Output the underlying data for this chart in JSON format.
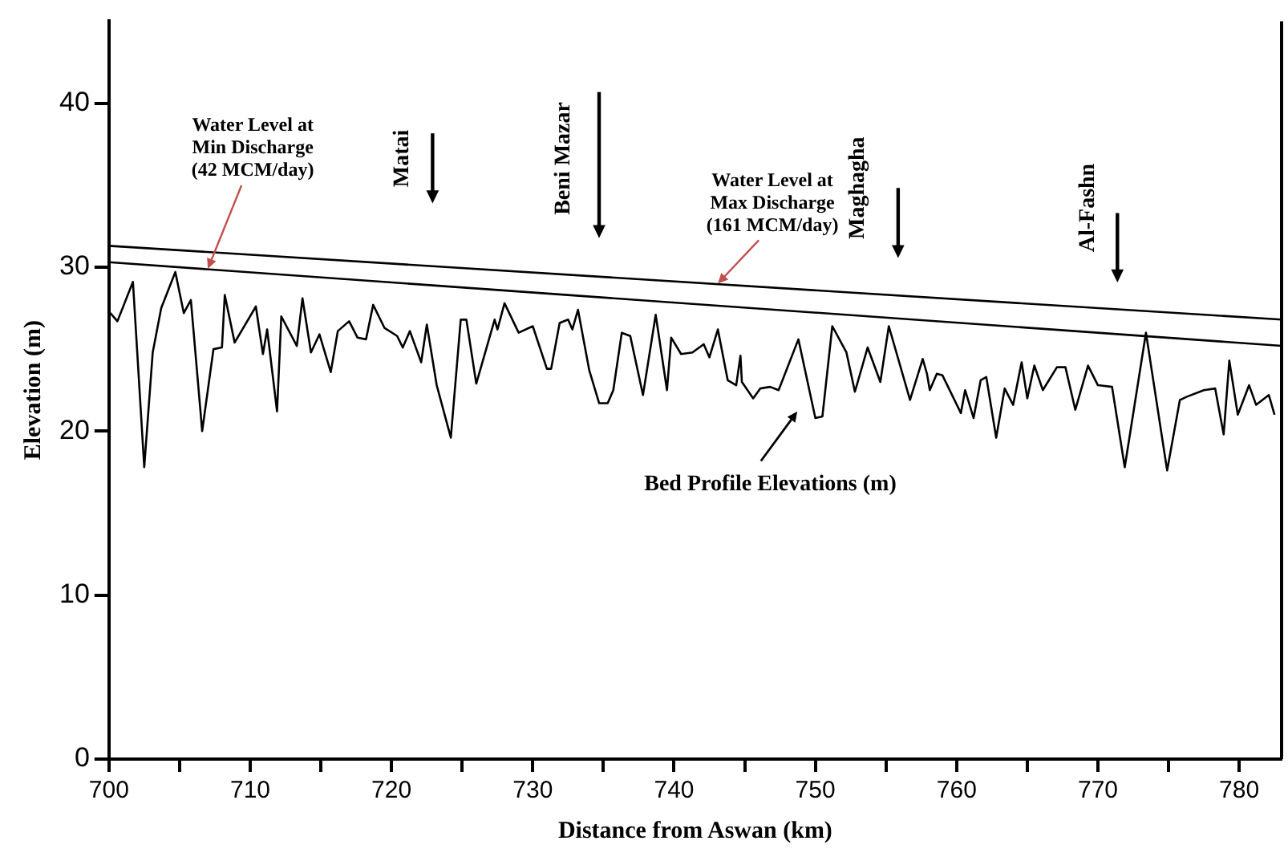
{
  "chart_data": {
    "type": "line",
    "xlabel": "Distance from Aswan (km)",
    "ylabel": "Elevation (m)",
    "xlim": [
      700,
      783
    ],
    "ylim": [
      0,
      45
    ],
    "xticks": [
      700,
      {
        "value": 705,
        "label": null
      },
      710,
      {
        "value": 715,
        "label": null
      },
      720,
      {
        "value": 725,
        "label": null
      },
      730,
      {
        "value": 735,
        "label": null
      },
      740,
      {
        "value": 745,
        "label": null
      },
      750,
      {
        "value": 755,
        "label": null
      },
      760,
      {
        "value": 765,
        "label": null
      },
      770,
      {
        "value": 775,
        "label": null
      },
      780
    ],
    "yticks": [
      0,
      10,
      20,
      30,
      40
    ],
    "grid": false,
    "legend": false,
    "marker": "none",
    "line_style": "solid",
    "series": [
      {
        "color": "#000000",
        "x": [
          700.1,
          700.6,
          701.7,
          702.5,
          703.1,
          703.7,
          704.7,
          705.3,
          705.8,
          706.6,
          707.4,
          708.0,
          708.2,
          708.9,
          710.4,
          710.9,
          711.2,
          711.9,
          712.2,
          713.3,
          713.7,
          714.3,
          714.9,
          715.7,
          716.2,
          717.0,
          717.6,
          718.2,
          718.7,
          719.5,
          720.4,
          720.8,
          721.3,
          722.1,
          722.5,
          723.2,
          724.2,
          724.9,
          725.3,
          726.0,
          727.3,
          727.5,
          728.0,
          729.0,
          730.0,
          731.0,
          731.3,
          731.9,
          732.5,
          732.8,
          733.2,
          734.0,
          734.7,
          735.3,
          735.7,
          736.3,
          736.9,
          737.8,
          738.7,
          739.5,
          739.8,
          740.5,
          741.3,
          742.1,
          742.5,
          743.1,
          743.8,
          744.4,
          744.7,
          744.8,
          745.6,
          746.1,
          746.8,
          747.4,
          748.8,
          750.0,
          750.5,
          751.2,
          752.2,
          752.8,
          753.7,
          754.6,
          755.2,
          756.7,
          757.6,
          757.9,
          758.1,
          758.6,
          759.0,
          760.3,
          760.6,
          761.2,
          761.7,
          762.1,
          762.8,
          763.4,
          764.0,
          764.6,
          765.0,
          765.5,
          766.1,
          767.1,
          767.7,
          768.4,
          769.3,
          770.0,
          771.0,
          771.9,
          773.4,
          774.9,
          775.8,
          776.3,
          777.5,
          778.3,
          778.9,
          779.3,
          779.9,
          780.7,
          781.2,
          782.1,
          782.5
        ],
        "values": [
          27.2,
          26.7,
          29.1,
          17.8,
          24.8,
          27.5,
          29.7,
          27.2,
          28.0,
          20.0,
          25.0,
          25.1,
          28.3,
          25.4,
          27.6,
          24.7,
          26.2,
          21.2,
          27.0,
          25.2,
          28.1,
          24.8,
          25.9,
          23.6,
          26.1,
          26.7,
          25.7,
          25.6,
          27.7,
          26.3,
          25.8,
          25.1,
          26.1,
          24.2,
          26.5,
          22.8,
          19.6,
          26.8,
          26.8,
          22.9,
          26.8,
          26.2,
          27.8,
          26.0,
          26.4,
          23.8,
          23.8,
          26.6,
          26.8,
          26.2,
          27.4,
          23.7,
          21.7,
          21.7,
          22.5,
          26.0,
          25.8,
          22.2,
          27.1,
          22.5,
          25.7,
          24.7,
          24.8,
          25.3,
          24.5,
          26.2,
          23.1,
          22.8,
          24.6,
          23.0,
          22.0,
          22.6,
          22.7,
          22.5,
          25.6,
          20.8,
          20.9,
          26.4,
          24.8,
          22.4,
          25.1,
          23.0,
          26.4,
          21.9,
          24.4,
          23.5,
          22.5,
          23.5,
          23.4,
          21.1,
          22.5,
          20.8,
          23.1,
          23.3,
          19.6,
          22.6,
          21.6,
          24.2,
          22.0,
          24.0,
          22.5,
          23.9,
          23.9,
          21.3,
          24.0,
          22.8,
          22.7,
          17.8,
          26.0,
          17.6,
          21.9,
          22.1,
          22.5,
          22.6,
          19.8,
          24.3,
          21.0,
          22.8,
          21.6,
          22.2,
          21.0
        ]
      },
      {
        "color": "#000000",
        "x": [
          700,
          783
        ],
        "values": [
          30.3,
          25.2
        ]
      },
      {
        "color": "#000000",
        "x": [
          700,
          783
        ],
        "values": [
          31.3,
          26.8
        ]
      }
    ],
    "annotations": [
      {
        "text": "Water Level at\nMin Discharge\n(42 MCM/day)",
        "x": 707.0,
        "y": 29.9
      },
      {
        "text": "Water Level at\nMax Discharge\n(161 MCM/day)",
        "x": 743.1,
        "y": 29.0
      },
      "Matai",
      "Beni Mazar",
      "Maghagha",
      "Al-Fashn",
      "Bed Profile Elevations (m)"
    ]
  }
}
